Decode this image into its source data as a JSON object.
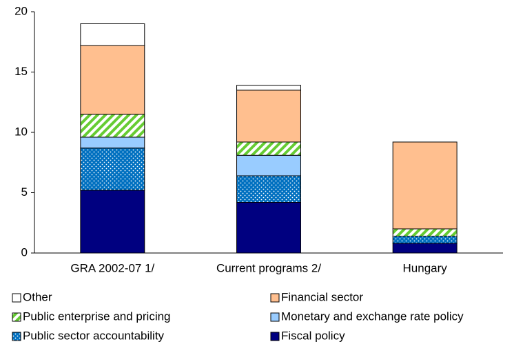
{
  "chart_data": {
    "type": "stacked_bar",
    "categories": [
      "GRA 2002-07 1/",
      "Current programs 2/",
      "Hungary"
    ],
    "series": [
      {
        "name": "Fiscal policy",
        "color": "#000080",
        "values": [
          5.2,
          4.2,
          0.8
        ]
      },
      {
        "name": "Public sector accountability",
        "color": "#0070c0",
        "pattern": "dots",
        "values": [
          3.5,
          2.2,
          0.6
        ]
      },
      {
        "name": "Monetary and exchange rate policy",
        "color": "#99ccff",
        "values": [
          0.9,
          1.7,
          0
        ]
      },
      {
        "name": "Public enterprise and pricing",
        "color": "#66cc33",
        "pattern": "stripes",
        "values": [
          1.9,
          1.1,
          0.6
        ]
      },
      {
        "name": "Financial sector",
        "color": "#ffbf8f",
        "values": [
          5.7,
          4.3,
          7.2
        ]
      },
      {
        "name": "Other",
        "color": "#ffffff",
        "values": [
          1.8,
          0.4,
          0
        ]
      }
    ],
    "ylim": [
      0,
      20
    ],
    "yticks": [
      0,
      5,
      10,
      15,
      20
    ],
    "grid": false
  }
}
